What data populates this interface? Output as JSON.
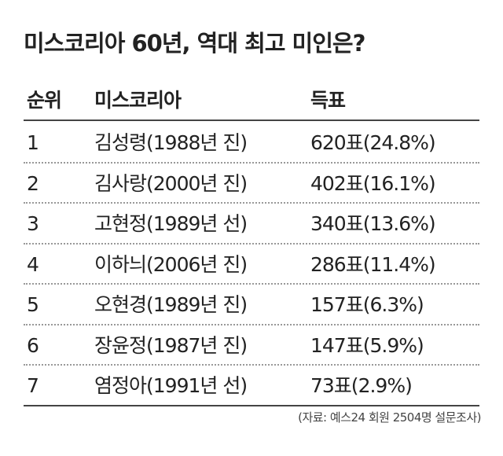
{
  "title": "미스코리아 60년, 역대 최고 미인은?",
  "table": {
    "header": [
      "순위",
      "미스코리아",
      "득표"
    ],
    "rows": [
      [
        "1",
        "김성령(1988년 진)",
        "620표(24.8%)"
      ],
      [
        "2",
        "김사랑(2000년 진)",
        "402표(16.1%)"
      ],
      [
        "3",
        "고현정(1989년 선)",
        "340표(13.6%)"
      ],
      [
        "4",
        "이하늬(2006년 진)",
        "286표(11.4%)"
      ],
      [
        "5",
        "오현경(1989년 진)",
        "157표(6.3%)"
      ],
      [
        "6",
        "장윤정(1987년 진)",
        "147표(5.9%)"
      ],
      [
        "7",
        "염정아(1991년 선)",
        "73표(2.9%)"
      ]
    ]
  },
  "source": "(자료: 예스24 회원 2504명 설문조사)"
}
